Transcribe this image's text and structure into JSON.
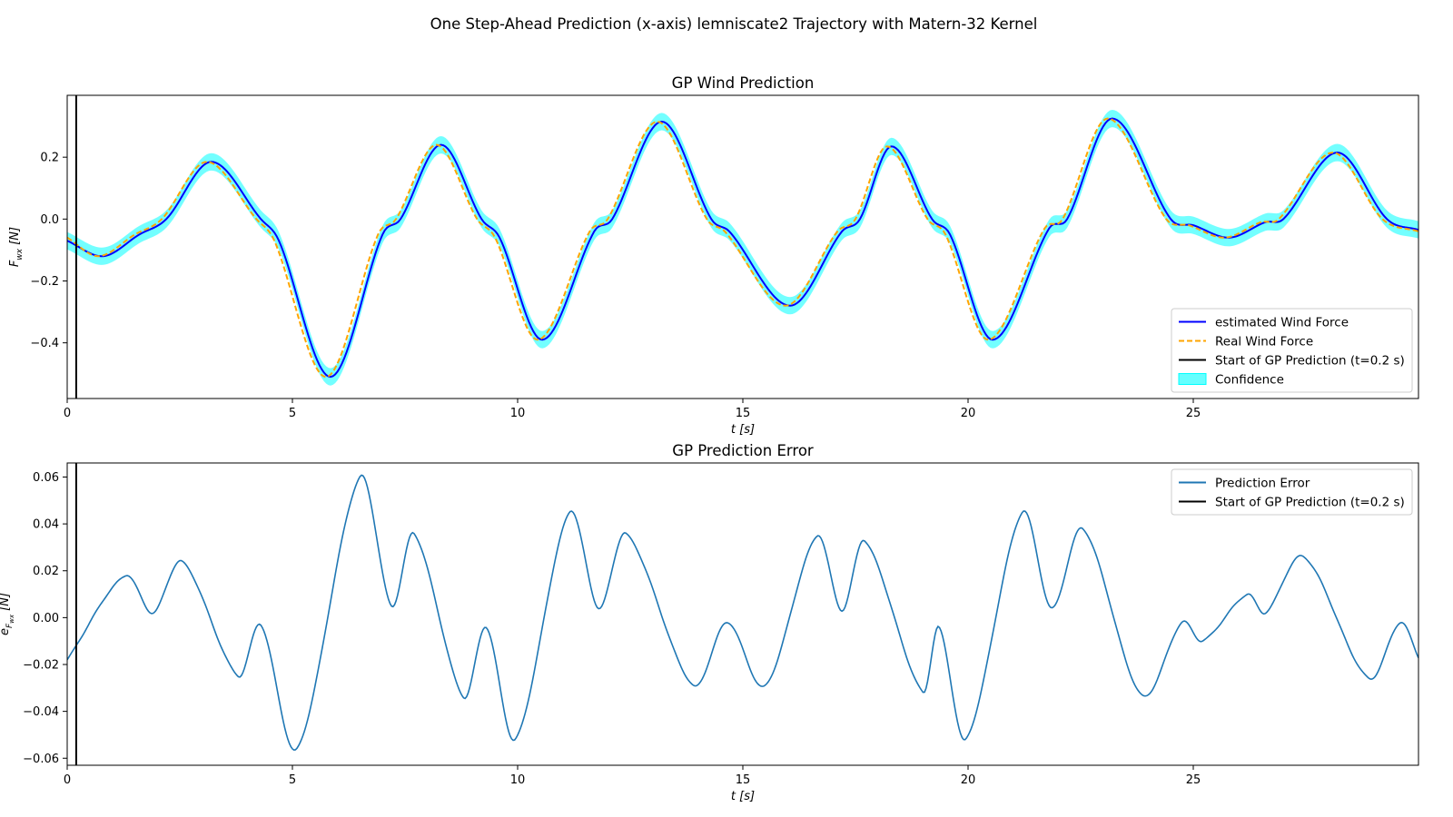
{
  "suptitle": "One Step-Ahead Prediction (x-axis) lemniscate2 Trajectory with Matern-32 Kernel",
  "colors": {
    "estimated": "#0000ff",
    "real": "#ffa500",
    "start": "#000000",
    "confidence": "#00ffff",
    "error": "#1f77b4"
  },
  "chart_data": [
    {
      "type": "line",
      "title": "GP Wind Prediction",
      "xlabel": "t [s]",
      "ylabel": "F_wx [N]",
      "ylabel_main": "F",
      "ylabel_sub": "wx",
      "ylabel_unit": " [N]",
      "xlabel_main": "t ",
      "xlabel_unit": "[s]",
      "xlim": [
        0,
        30
      ],
      "ylim": [
        -0.58,
        0.4
      ],
      "xticks": [
        0,
        5,
        10,
        15,
        20,
        25
      ],
      "yticks": [
        0.2,
        0.0,
        -0.2,
        -0.4
      ],
      "ytick_labels": [
        "0.2",
        "0.0",
        "−0.2",
        "−0.4"
      ],
      "grid": false,
      "legend_position": "lower-right",
      "start_of_prediction_x": 0.2,
      "confidence_halfwidth": 0.028,
      "series": [
        {
          "name": "estimated Wind Force",
          "style": "solid",
          "x": [
            0,
            0.8,
            1.6,
            2.2,
            3.2,
            4.3,
            4.7,
            5.85,
            7.0,
            7.4,
            8.3,
            9.2,
            9.6,
            10.55,
            11.7,
            12.1,
            13.2,
            14.3,
            14.7,
            16.05,
            17.2,
            17.6,
            18.3,
            19.2,
            19.6,
            20.55,
            21.8,
            22.2,
            23.2,
            24.5,
            25.0,
            25.8,
            26.6,
            27.0,
            28.2,
            29.3,
            30.0
          ],
          "values": [
            -0.07,
            -0.12,
            -0.05,
            0.0,
            0.185,
            0.0,
            -0.07,
            -0.51,
            -0.05,
            0.0,
            0.24,
            0.0,
            -0.06,
            -0.39,
            -0.04,
            0.0,
            0.315,
            0.0,
            -0.04,
            -0.28,
            -0.04,
            0.0,
            0.235,
            0.0,
            -0.05,
            -0.39,
            -0.03,
            0.0,
            0.325,
            0.0,
            -0.02,
            -0.06,
            -0.01,
            0.0,
            0.215,
            0.0,
            -0.035
          ]
        },
        {
          "name": "Real Wind Force",
          "style": "dashed",
          "x": [
            0,
            0.7,
            1.5,
            2.1,
            3.1,
            4.2,
            4.6,
            5.75,
            6.9,
            7.3,
            8.2,
            9.1,
            9.5,
            10.45,
            11.6,
            12.0,
            13.1,
            14.2,
            14.6,
            15.95,
            17.1,
            17.5,
            18.2,
            19.1,
            19.5,
            20.45,
            21.7,
            22.1,
            23.1,
            24.4,
            24.9,
            25.7,
            26.5,
            26.9,
            28.1,
            29.2,
            30.0
          ],
          "values": [
            -0.06,
            -0.12,
            -0.05,
            0.0,
            0.185,
            0.0,
            -0.07,
            -0.51,
            -0.05,
            0.0,
            0.24,
            0.0,
            -0.06,
            -0.39,
            -0.04,
            0.0,
            0.315,
            0.0,
            -0.04,
            -0.28,
            -0.04,
            0.0,
            0.235,
            0.0,
            -0.05,
            -0.39,
            -0.03,
            0.0,
            0.325,
            0.0,
            -0.02,
            -0.06,
            -0.01,
            0.0,
            0.215,
            0.0,
            -0.04
          ]
        }
      ],
      "legend": [
        {
          "label": "estimated Wind Force",
          "kind": "line",
          "color": "#0000ff",
          "dash": "none"
        },
        {
          "label": "Real Wind Force",
          "kind": "line",
          "color": "#ffa500",
          "dash": "6,3"
        },
        {
          "label": "Start of GP Prediction (t=0.2 s)",
          "kind": "line",
          "color": "#000000",
          "dash": "none"
        },
        {
          "label": "Confidence",
          "kind": "patch",
          "color": "#00ffff",
          "dash": "none"
        }
      ]
    },
    {
      "type": "line",
      "title": "GP Prediction Error",
      "xlabel": "t [s]",
      "ylabel": "e_Fwx [N]",
      "ylabel_main": "e",
      "ylabel_sub": "F",
      "ylabel_subsub": "wx",
      "ylabel_unit": " [N]",
      "xlabel_main": "t ",
      "xlabel_unit": "[s]",
      "xlim": [
        0,
        30
      ],
      "ylim": [
        -0.063,
        0.066
      ],
      "xticks": [
        0,
        5,
        10,
        15,
        20,
        25
      ],
      "yticks": [
        0.06,
        0.04,
        0.02,
        0.0,
        -0.02,
        -0.04,
        -0.06
      ],
      "ytick_labels": [
        "0.06",
        "0.04",
        "0.02",
        "0.00",
        "−0.02",
        "−0.04",
        "−0.06"
      ],
      "grid": false,
      "legend_position": "upper-right",
      "start_of_prediction_x": 0.2,
      "series": [
        {
          "name": "Prediction Error",
          "style": "solid",
          "x": [
            0,
            1.3,
            1.9,
            2.55,
            3.8,
            4.3,
            5.1,
            6.5,
            7.2,
            7.7,
            8.8,
            9.3,
            9.95,
            11.15,
            11.8,
            12.4,
            13.9,
            14.65,
            15.5,
            16.65,
            17.2,
            17.7,
            19.0,
            19.35,
            19.95,
            21.2,
            21.85,
            22.55,
            23.85,
            24.75,
            25.2,
            26.2,
            26.6,
            27.45,
            28.9,
            29.6,
            30.0
          ],
          "values": [
            -0.018,
            0.018,
            0.002,
            0.024,
            -0.025,
            -0.003,
            -0.056,
            0.06,
            0.005,
            0.036,
            -0.034,
            -0.004,
            -0.052,
            0.045,
            0.004,
            0.036,
            -0.029,
            -0.002,
            -0.029,
            0.035,
            0.003,
            0.033,
            -0.032,
            -0.004,
            -0.052,
            0.045,
            0.004,
            0.038,
            -0.033,
            -0.002,
            -0.01,
            0.01,
            0.002,
            0.026,
            -0.026,
            -0.002,
            -0.017
          ]
        }
      ],
      "legend": [
        {
          "label": "Prediction Error",
          "kind": "line",
          "color": "#1f77b4",
          "dash": "none"
        },
        {
          "label": "Start of GP Prediction (t=0.2 s)",
          "kind": "line",
          "color": "#000000",
          "dash": "none"
        }
      ]
    }
  ]
}
